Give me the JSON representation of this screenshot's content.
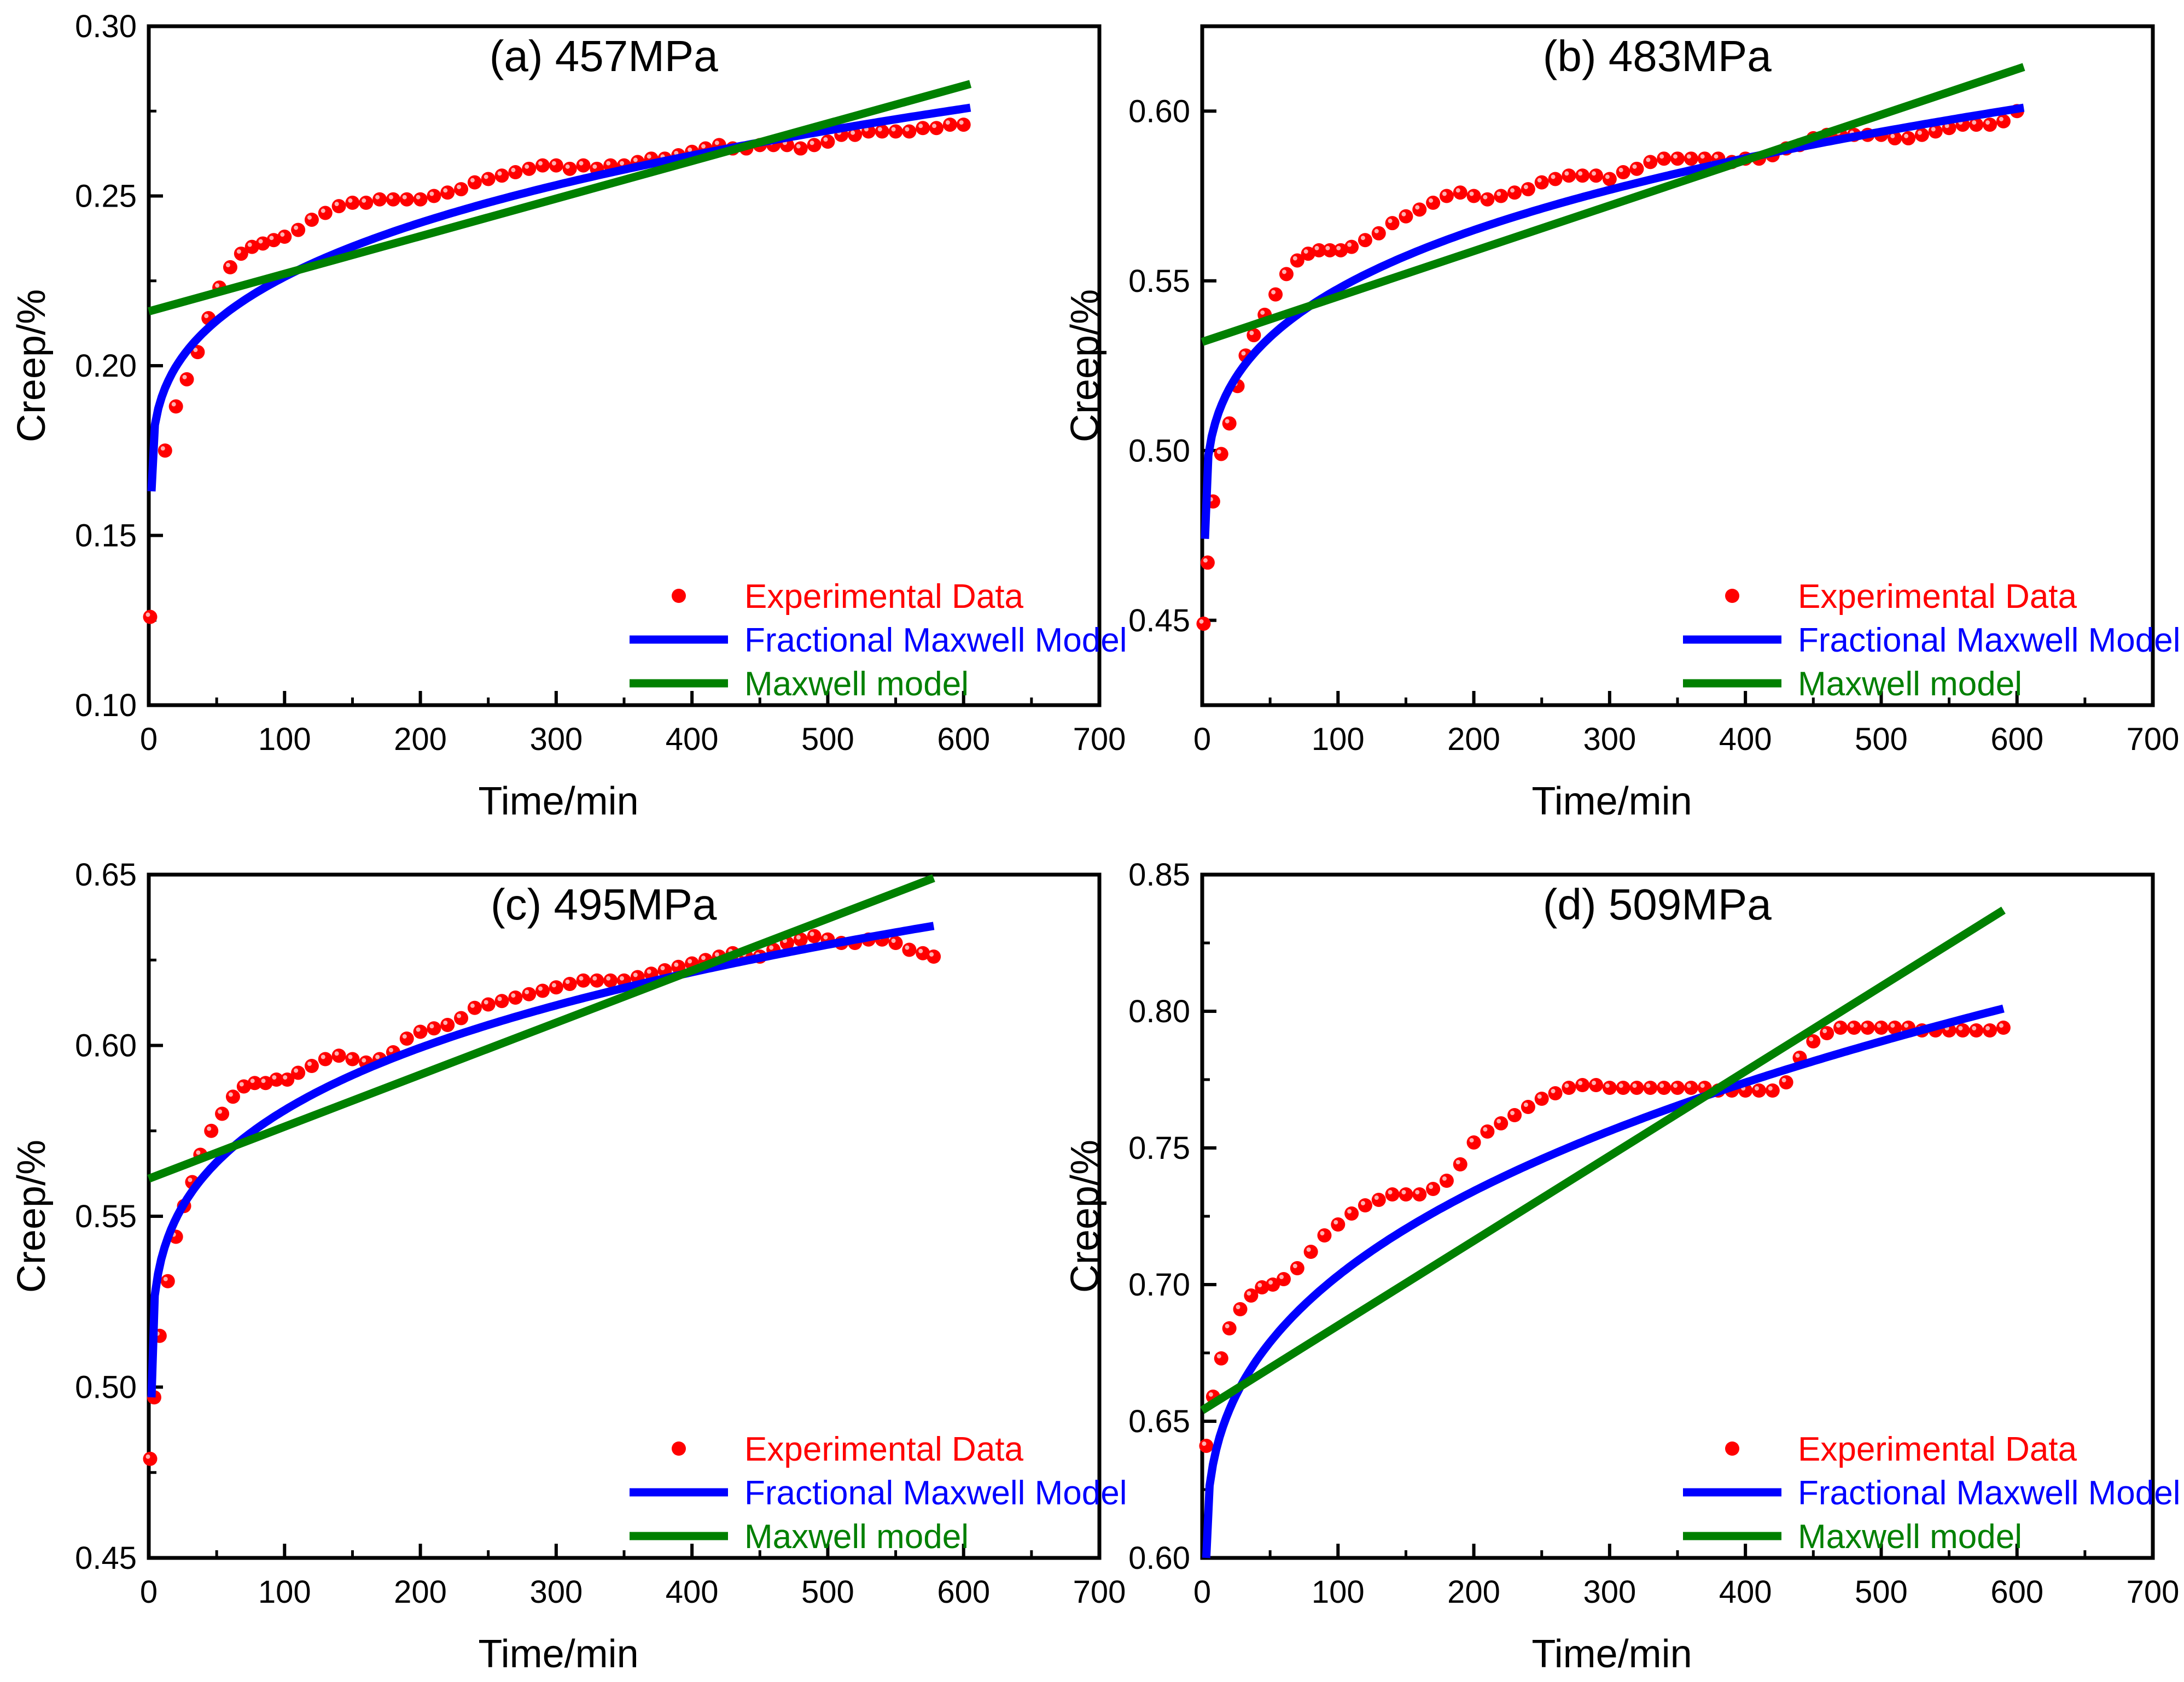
{
  "figure_title": "Creep curves fitted with Fractional Maxwell Model and Maxwell model",
  "colors": {
    "experimental": "#ff0000",
    "fractional": "#0000ff",
    "maxwell": "#008000",
    "axis": "#000000"
  },
  "chart_data": [
    {
      "type": "scatter",
      "title": "(a) 457MPa",
      "xlabel": "Time/min",
      "ylabel": "Creep/%",
      "xlim": [
        0,
        700
      ],
      "ylim": [
        0.1,
        0.3
      ],
      "xticks": [
        0,
        100,
        200,
        300,
        400,
        500,
        600,
        700
      ],
      "xtick_labels": [
        "0",
        "100",
        "200",
        "300",
        "400",
        "500",
        "600",
        "700"
      ],
      "yticks": [
        0.1,
        0.15,
        0.2,
        0.25,
        0.3
      ],
      "ytick_labels": [
        "0.10",
        "0.15",
        "0.20",
        "0.25",
        "0.30"
      ],
      "legend": [
        "Experimental Data",
        "Fractional Maxwell Model",
        "Maxwell model"
      ],
      "legend_position": "bottom-right",
      "series": [
        {
          "name": "Experimental Data",
          "kind": "points",
          "x": [
            1,
            12,
            20,
            28,
            36,
            44,
            52,
            60,
            68,
            76,
            84,
            92,
            100,
            110,
            120,
            130,
            140,
            150,
            160,
            170,
            180,
            190,
            200,
            210,
            220,
            230,
            240,
            250,
            260,
            270,
            280,
            290,
            300,
            310,
            320,
            330,
            340,
            350,
            360,
            370,
            380,
            390,
            400,
            410,
            420,
            430,
            440,
            450,
            460,
            470,
            480,
            490,
            500,
            510,
            520,
            530,
            540,
            550,
            560,
            570,
            580,
            590,
            600
          ],
          "y": [
            0.126,
            0.175,
            0.188,
            0.196,
            0.204,
            0.214,
            0.223,
            0.229,
            0.233,
            0.235,
            0.236,
            0.237,
            0.238,
            0.24,
            0.243,
            0.245,
            0.247,
            0.248,
            0.248,
            0.249,
            0.249,
            0.249,
            0.249,
            0.25,
            0.251,
            0.252,
            0.254,
            0.255,
            0.256,
            0.257,
            0.258,
            0.259,
            0.259,
            0.258,
            0.259,
            0.258,
            0.259,
            0.259,
            0.26,
            0.261,
            0.261,
            0.262,
            0.263,
            0.264,
            0.265,
            0.264,
            0.264,
            0.265,
            0.265,
            0.265,
            0.264,
            0.265,
            0.266,
            0.268,
            0.268,
            0.269,
            0.269,
            0.269,
            0.269,
            0.27,
            0.27,
            0.271,
            0.271
          ]
        },
        {
          "name": "Fractional Maxwell Model",
          "kind": "power-law",
          "x_start": 2,
          "x_end": 605,
          "y_start": 0.163,
          "y_end": 0.276,
          "exponent": 0.32
        },
        {
          "name": "Maxwell model",
          "kind": "linear",
          "x": [
            0,
            605
          ],
          "y": [
            0.216,
            0.283
          ]
        }
      ]
    },
    {
      "type": "scatter",
      "title": "(b) 483MPa",
      "xlabel": "Time/min",
      "ylabel": "Creep/%",
      "xlim": [
        0,
        700
      ],
      "ylim": [
        0.425,
        0.625
      ],
      "xticks": [
        0,
        100,
        200,
        300,
        400,
        500,
        600,
        700
      ],
      "xtick_labels": [
        "0",
        "100",
        "200",
        "300",
        "400",
        "500",
        "600",
        "700"
      ],
      "yticks": [
        0.45,
        0.5,
        0.55,
        0.6
      ],
      "ytick_labels": [
        "0.45",
        "0.50",
        "0.55",
        "0.60"
      ],
      "legend": [
        "Experimental Data",
        "Fractional Maxwell Model",
        "Maxwell model"
      ],
      "legend_position": "bottom-right",
      "series": [
        {
          "name": "Experimental Data",
          "kind": "points",
          "x": [
            1,
            4,
            8,
            14,
            20,
            26,
            32,
            38,
            46,
            54,
            62,
            70,
            78,
            86,
            94,
            102,
            110,
            120,
            130,
            140,
            150,
            160,
            170,
            180,
            190,
            200,
            210,
            220,
            230,
            240,
            250,
            260,
            270,
            280,
            290,
            300,
            310,
            320,
            330,
            340,
            350,
            360,
            370,
            380,
            390,
            400,
            410,
            420,
            430,
            440,
            450,
            460,
            470,
            480,
            490,
            500,
            510,
            520,
            530,
            540,
            550,
            560,
            570,
            580,
            590,
            600
          ],
          "y": [
            0.449,
            0.467,
            0.485,
            0.499,
            0.508,
            0.519,
            0.528,
            0.534,
            0.54,
            0.546,
            0.552,
            0.556,
            0.558,
            0.559,
            0.559,
            0.559,
            0.56,
            0.562,
            0.564,
            0.567,
            0.569,
            0.571,
            0.573,
            0.575,
            0.576,
            0.575,
            0.574,
            0.575,
            0.576,
            0.577,
            0.579,
            0.58,
            0.581,
            0.581,
            0.581,
            0.58,
            0.582,
            0.583,
            0.585,
            0.586,
            0.586,
            0.586,
            0.586,
            0.586,
            0.585,
            0.586,
            0.586,
            0.587,
            0.589,
            0.59,
            0.592,
            0.593,
            0.593,
            0.593,
            0.593,
            0.593,
            0.592,
            0.592,
            0.593,
            0.594,
            0.595,
            0.596,
            0.596,
            0.596,
            0.597,
            0.6
          ]
        },
        {
          "name": "Fractional Maxwell Model",
          "kind": "power-law",
          "x_start": 2,
          "x_end": 605,
          "y_start": 0.474,
          "y_end": 0.601,
          "exponent": 0.3
        },
        {
          "name": "Maxwell model",
          "kind": "linear",
          "x": [
            0,
            605
          ],
          "y": [
            0.532,
            0.613
          ]
        }
      ]
    },
    {
      "type": "scatter",
      "title": "(c) 495MPa",
      "xlabel": "Time/min",
      "ylabel": "Creep/%",
      "xlim": [
        0,
        700
      ],
      "ylim": [
        0.45,
        0.65
      ],
      "xticks": [
        0,
        100,
        200,
        300,
        400,
        500,
        600,
        700
      ],
      "xtick_labels": [
        "0",
        "100",
        "200",
        "300",
        "400",
        "500",
        "600",
        "700"
      ],
      "yticks": [
        0.45,
        0.5,
        0.55,
        0.6,
        0.65
      ],
      "ytick_labels": [
        "0.45",
        "0.50",
        "0.55",
        "0.60",
        "0.65"
      ],
      "legend": [
        "Experimental Data",
        "Fractional Maxwell Model",
        "Maxwell model"
      ],
      "legend_position": "bottom-right",
      "series": [
        {
          "name": "Experimental Data",
          "kind": "points",
          "x": [
            1,
            4,
            8,
            14,
            20,
            26,
            32,
            38,
            46,
            54,
            62,
            70,
            78,
            86,
            94,
            102,
            110,
            120,
            130,
            140,
            150,
            160,
            170,
            180,
            190,
            200,
            210,
            220,
            230,
            240,
            250,
            260,
            270,
            280,
            290,
            300,
            310,
            320,
            330,
            340,
            350,
            360,
            370,
            380,
            390,
            400,
            410,
            420,
            430,
            440,
            450,
            460,
            470,
            480,
            490,
            500,
            510,
            520,
            530,
            540,
            550,
            560,
            570,
            578
          ],
          "y": [
            0.479,
            0.497,
            0.515,
            0.531,
            0.544,
            0.553,
            0.56,
            0.568,
            0.575,
            0.58,
            0.585,
            0.588,
            0.589,
            0.589,
            0.59,
            0.59,
            0.592,
            0.594,
            0.596,
            0.597,
            0.596,
            0.595,
            0.596,
            0.598,
            0.602,
            0.604,
            0.605,
            0.606,
            0.608,
            0.611,
            0.612,
            0.613,
            0.614,
            0.615,
            0.616,
            0.617,
            0.618,
            0.619,
            0.619,
            0.619,
            0.619,
            0.62,
            0.621,
            0.622,
            0.623,
            0.624,
            0.625,
            0.626,
            0.627,
            0.626,
            0.626,
            0.628,
            0.63,
            0.631,
            0.632,
            0.631,
            0.63,
            0.63,
            0.631,
            0.631,
            0.63,
            0.628,
            0.627,
            0.626
          ]
        },
        {
          "name": "Fractional Maxwell Model",
          "kind": "power-law",
          "x_start": 2,
          "x_end": 578,
          "y_start": 0.497,
          "y_end": 0.635,
          "exponent": 0.28
        },
        {
          "name": "Maxwell model",
          "kind": "linear",
          "x": [
            0,
            578
          ],
          "y": [
            0.561,
            0.649
          ]
        }
      ]
    },
    {
      "type": "scatter",
      "title": "(d) 509MPa",
      "xlabel": "Time/min",
      "ylabel": "Creep/%",
      "xlim": [
        0,
        700
      ],
      "ylim": [
        0.6,
        0.85
      ],
      "xticks": [
        0,
        100,
        200,
        300,
        400,
        500,
        600,
        700
      ],
      "xtick_labels": [
        "0",
        "100",
        "200",
        "300",
        "400",
        "500",
        "600",
        "700"
      ],
      "yticks": [
        0.6,
        0.65,
        0.7,
        0.75,
        0.8,
        0.85
      ],
      "ytick_labels": [
        "0.60",
        "0.65",
        "0.70",
        "0.75",
        "0.80",
        "0.85"
      ],
      "legend": [
        "Experimental Data",
        "Fractional Maxwell Model",
        "Maxwell model"
      ],
      "legend_position": "bottom-right",
      "series": [
        {
          "name": "Experimental Data",
          "kind": "points",
          "x": [
            3,
            8,
            14,
            20,
            28,
            36,
            44,
            52,
            60,
            70,
            80,
            90,
            100,
            110,
            120,
            130,
            140,
            150,
            160,
            170,
            180,
            190,
            200,
            210,
            220,
            230,
            240,
            250,
            260,
            270,
            280,
            290,
            300,
            310,
            320,
            330,
            340,
            350,
            360,
            370,
            380,
            390,
            400,
            410,
            420,
            430,
            440,
            450,
            460,
            470,
            480,
            490,
            500,
            510,
            520,
            530,
            540,
            550,
            560,
            570,
            580,
            590
          ],
          "y": [
            0.641,
            0.659,
            0.673,
            0.684,
            0.691,
            0.696,
            0.699,
            0.7,
            0.702,
            0.706,
            0.712,
            0.718,
            0.722,
            0.726,
            0.729,
            0.731,
            0.733,
            0.733,
            0.733,
            0.735,
            0.738,
            0.744,
            0.752,
            0.756,
            0.759,
            0.762,
            0.765,
            0.768,
            0.77,
            0.772,
            0.773,
            0.773,
            0.772,
            0.772,
            0.772,
            0.772,
            0.772,
            0.772,
            0.772,
            0.772,
            0.771,
            0.771,
            0.771,
            0.771,
            0.771,
            0.774,
            0.783,
            0.789,
            0.792,
            0.794,
            0.794,
            0.794,
            0.794,
            0.794,
            0.794,
            0.793,
            0.793,
            0.793,
            0.793,
            0.793,
            0.793,
            0.794
          ]
        },
        {
          "name": "Fractional Maxwell Model",
          "kind": "power-law",
          "x_start": 3,
          "x_end": 590,
          "y_start": 0.6,
          "y_end": 0.801,
          "exponent": 0.37
        },
        {
          "name": "Maxwell model",
          "kind": "linear",
          "x": [
            0,
            590
          ],
          "y": [
            0.654,
            0.837
          ]
        }
      ]
    }
  ]
}
